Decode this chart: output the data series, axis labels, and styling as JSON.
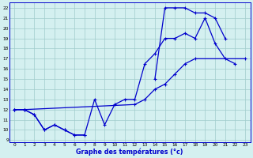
{
  "title": "Graphe des températures (°c)",
  "bg_color": "#d4f0f0",
  "grid_color": "#a0cccc",
  "line_color": "#0000cc",
  "xlim": [
    -0.5,
    23.5
  ],
  "ylim": [
    8.8,
    22.5
  ],
  "xticks": [
    0,
    1,
    2,
    3,
    4,
    5,
    6,
    7,
    8,
    9,
    10,
    11,
    12,
    13,
    14,
    15,
    16,
    17,
    18,
    19,
    20,
    21,
    22,
    23
  ],
  "yticks": [
    9,
    10,
    11,
    12,
    13,
    14,
    15,
    16,
    17,
    18,
    19,
    20,
    21,
    22
  ],
  "line1_x": [
    0,
    1,
    2,
    3,
    4,
    5,
    6,
    7,
    8,
    9,
    10,
    11,
    12,
    13,
    14,
    15,
    16,
    17,
    18,
    19,
    20,
    21,
    22
  ],
  "line1_y": [
    12,
    12,
    11.5,
    10,
    10.5,
    10,
    9.5,
    9.5,
    13,
    10.5,
    12.5,
    13,
    13,
    16.5,
    17.5,
    19,
    19,
    19.5,
    19,
    21,
    18.5,
    17,
    16.5
  ],
  "line2_x": [
    0,
    1,
    2,
    3,
    4,
    5,
    6,
    7,
    8,
    14,
    15,
    16,
    17,
    18,
    19,
    20,
    21
  ],
  "line2_y": [
    12,
    12,
    11.5,
    10,
    10.5,
    10,
    9.5,
    9.5,
    null,
    15,
    22,
    22,
    22,
    21.5,
    21.5,
    21,
    19
  ],
  "line3_x": [
    0,
    1,
    12,
    13,
    14,
    15,
    16,
    17,
    18,
    23
  ],
  "line3_y": [
    12,
    12,
    12.5,
    13,
    14,
    14.5,
    15.5,
    16.5,
    17,
    17
  ]
}
